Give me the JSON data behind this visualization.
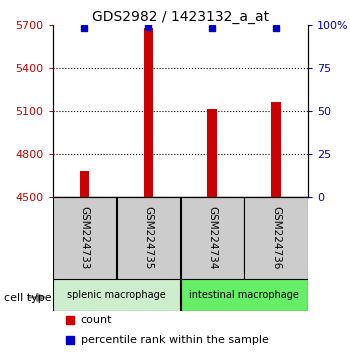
{
  "title": "GDS2982 / 1423132_a_at",
  "samples": [
    "GSM224733",
    "GSM224735",
    "GSM224734",
    "GSM224736"
  ],
  "counts": [
    4683,
    5680,
    5112,
    5162
  ],
  "percentiles": [
    98,
    99,
    98,
    98
  ],
  "ylim_left": [
    4500,
    5700
  ],
  "ylim_right": [
    0,
    100
  ],
  "yticks_left": [
    4500,
    4800,
    5100,
    5400,
    5700
  ],
  "yticks_right": [
    0,
    25,
    50,
    75,
    100
  ],
  "ytick_labels_left": [
    "4500",
    "4800",
    "5100",
    "5400",
    "5700"
  ],
  "ytick_labels_right": [
    "0",
    "25",
    "50",
    "75",
    "100%"
  ],
  "groups": [
    {
      "label": "splenic macrophage",
      "color": "#cceecc"
    },
    {
      "label": "intestinal macrophage",
      "color": "#66ee66"
    }
  ],
  "bar_color": "#cc0000",
  "marker_color": "#0000cc",
  "bar_width": 0.15,
  "cell_type_label": "cell type",
  "legend_count": "count",
  "legend_percentile": "percentile rank within the sample",
  "sample_box_color": "#cccccc",
  "left_tick_color": "#cc0000",
  "right_tick_color": "#0000cc"
}
